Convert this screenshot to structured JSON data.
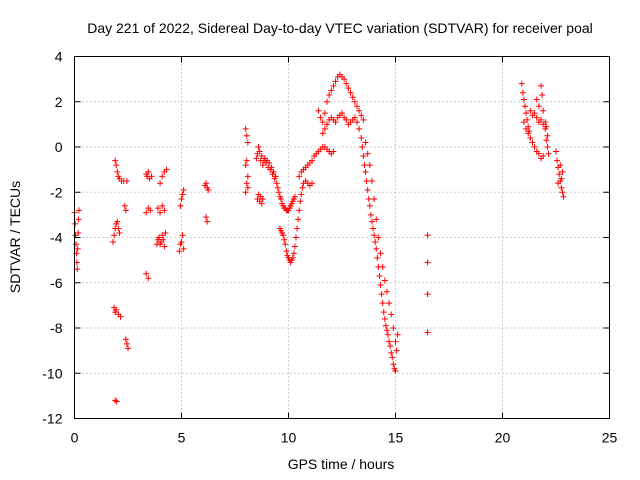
{
  "chart_data": {
    "type": "scatter",
    "title": "Day 221 of 2022, Sidereal Day-to-day VTEC variation (SDTVAR) for receiver poal",
    "xlabel": "GPS time / hours",
    "ylabel": "SDTVAR / TECUs",
    "xlim": [
      0,
      25
    ],
    "ylim": [
      -12,
      4
    ],
    "xticks": [
      0,
      5,
      10,
      15,
      20,
      25
    ],
    "xtick_labels": [
      "0",
      "5",
      "10",
      "15",
      "20",
      "25"
    ],
    "yticks": [
      -12,
      -10,
      -8,
      -6,
      -4,
      -2,
      0,
      2,
      4
    ],
    "ytick_labels": [
      "-12",
      "-10",
      "-8",
      "-6",
      "-4",
      "-2",
      "0",
      "2",
      "4"
    ],
    "grid": true,
    "marker": "+",
    "marker_color": "#ff0000",
    "series": [
      {
        "name": "SDTVAR",
        "points": [
          [
            0.0,
            -2.9
          ],
          [
            0.03,
            -3.4
          ],
          [
            0.05,
            -3.9
          ],
          [
            0.07,
            -4.3
          ],
          [
            0.09,
            -4.7
          ],
          [
            0.11,
            -5.1
          ],
          [
            0.13,
            -5.4
          ],
          [
            0.15,
            -4.5
          ],
          [
            0.17,
            -3.8
          ],
          [
            0.19,
            -3.2
          ],
          [
            0.21,
            -2.8
          ],
          [
            1.8,
            -4.2
          ],
          [
            1.85,
            -3.9
          ],
          [
            1.9,
            -3.6
          ],
          [
            1.95,
            -3.4
          ],
          [
            2.0,
            -3.3
          ],
          [
            2.05,
            -3.6
          ],
          [
            2.1,
            -3.8
          ],
          [
            1.85,
            -7.1
          ],
          [
            1.9,
            -7.3
          ],
          [
            1.95,
            -7.2
          ],
          [
            2.05,
            -7.4
          ],
          [
            2.15,
            -7.5
          ],
          [
            1.9,
            -11.2
          ],
          [
            1.97,
            -11.25
          ],
          [
            2.4,
            -8.5
          ],
          [
            2.45,
            -8.7
          ],
          [
            2.5,
            -8.9
          ],
          [
            1.9,
            -0.6
          ],
          [
            1.95,
            -0.8
          ],
          [
            2.0,
            -1.1
          ],
          [
            2.05,
            -1.3
          ],
          [
            2.1,
            -1.4
          ],
          [
            2.2,
            -1.5
          ],
          [
            2.3,
            -1.5
          ],
          [
            2.45,
            -1.5
          ],
          [
            2.35,
            -2.6
          ],
          [
            2.4,
            -2.8
          ],
          [
            3.35,
            -1.2
          ],
          [
            3.4,
            -1.3
          ],
          [
            3.45,
            -1.1
          ],
          [
            3.5,
            -1.4
          ],
          [
            3.6,
            -1.3
          ],
          [
            3.35,
            -2.9
          ],
          [
            3.45,
            -2.7
          ],
          [
            3.55,
            -2.8
          ],
          [
            3.35,
            -5.6
          ],
          [
            3.45,
            -5.8
          ],
          [
            3.85,
            -4.3
          ],
          [
            3.9,
            -4.1
          ],
          [
            3.95,
            -4.0
          ],
          [
            4.0,
            -4.3
          ],
          [
            4.05,
            -4.2
          ],
          [
            4.1,
            -3.9
          ],
          [
            4.15,
            -4.1
          ],
          [
            4.2,
            -4.4
          ],
          [
            4.25,
            -3.8
          ],
          [
            3.9,
            -2.7
          ],
          [
            4.0,
            -2.9
          ],
          [
            4.1,
            -2.6
          ],
          [
            4.2,
            -2.8
          ],
          [
            4.0,
            -1.6
          ],
          [
            4.1,
            -1.3
          ],
          [
            4.2,
            -1.1
          ],
          [
            4.3,
            -1.0
          ],
          [
            4.9,
            -4.6
          ],
          [
            4.95,
            -4.3
          ],
          [
            5.0,
            -4.2
          ],
          [
            5.05,
            -3.9
          ],
          [
            5.1,
            -4.5
          ],
          [
            4.95,
            -2.6
          ],
          [
            5.0,
            -2.3
          ],
          [
            5.05,
            -2.1
          ],
          [
            5.1,
            -1.9
          ],
          [
            6.1,
            -1.7
          ],
          [
            6.15,
            -1.6
          ],
          [
            6.2,
            -1.8
          ],
          [
            6.25,
            -1.9
          ],
          [
            6.15,
            -3.1
          ],
          [
            6.2,
            -3.3
          ],
          [
            8.0,
            0.8
          ],
          [
            8.05,
            0.5
          ],
          [
            8.1,
            0.2
          ],
          [
            8.05,
            -0.6
          ],
          [
            8.0,
            -0.8
          ],
          [
            8.1,
            -1.3
          ],
          [
            8.05,
            -1.6
          ],
          [
            8.0,
            -2.0
          ],
          [
            8.1,
            -1.8
          ],
          [
            8.5,
            -0.5
          ],
          [
            8.55,
            -0.3
          ],
          [
            8.6,
            0.0
          ],
          [
            8.65,
            -0.2
          ],
          [
            8.7,
            -0.6
          ],
          [
            8.75,
            -0.4
          ],
          [
            8.8,
            -0.8
          ],
          [
            8.85,
            -0.6
          ],
          [
            8.9,
            -0.5
          ],
          [
            8.95,
            -0.7
          ],
          [
            9.0,
            -0.6
          ],
          [
            9.05,
            -0.9
          ],
          [
            9.1,
            -0.7
          ],
          [
            9.15,
            -1.0
          ],
          [
            9.2,
            -0.9
          ],
          [
            9.25,
            -1.2
          ],
          [
            9.3,
            -1.1
          ],
          [
            9.35,
            -1.4
          ],
          [
            9.4,
            -1.3
          ],
          [
            8.55,
            -2.3
          ],
          [
            8.6,
            -2.1
          ],
          [
            8.65,
            -2.4
          ],
          [
            8.7,
            -2.2
          ],
          [
            8.75,
            -2.5
          ],
          [
            8.8,
            -2.3
          ],
          [
            9.45,
            -1.6
          ],
          [
            9.5,
            -1.8
          ],
          [
            9.55,
            -2.0
          ],
          [
            9.6,
            -2.2
          ],
          [
            9.65,
            -2.3
          ],
          [
            9.7,
            -2.5
          ],
          [
            9.75,
            -2.6
          ],
          [
            9.8,
            -2.7
          ],
          [
            9.85,
            -2.7
          ],
          [
            9.9,
            -2.8
          ],
          [
            9.95,
            -2.8
          ],
          [
            10.0,
            -2.8
          ],
          [
            10.05,
            -2.7
          ],
          [
            10.1,
            -2.6
          ],
          [
            10.15,
            -2.5
          ],
          [
            10.2,
            -2.4
          ],
          [
            10.25,
            -2.3
          ],
          [
            10.3,
            -2.2
          ],
          [
            9.6,
            -3.6
          ],
          [
            9.65,
            -3.7
          ],
          [
            9.7,
            -3.8
          ],
          [
            9.75,
            -3.9
          ],
          [
            9.8,
            -4.1
          ],
          [
            9.85,
            -4.3
          ],
          [
            9.9,
            -4.6
          ],
          [
            9.95,
            -4.8
          ],
          [
            10.0,
            -4.9
          ],
          [
            10.05,
            -5.0
          ],
          [
            10.1,
            -5.1
          ],
          [
            10.15,
            -5.0
          ],
          [
            10.2,
            -4.9
          ],
          [
            10.25,
            -4.7
          ],
          [
            10.3,
            -4.4
          ],
          [
            10.35,
            -4.0
          ],
          [
            10.4,
            -3.6
          ],
          [
            10.45,
            -3.2
          ],
          [
            10.5,
            -2.8
          ],
          [
            10.55,
            -2.4
          ],
          [
            10.6,
            -2.1
          ],
          [
            10.65,
            -1.8
          ],
          [
            10.7,
            -1.6
          ],
          [
            10.8,
            -1.5
          ],
          [
            10.9,
            -1.6
          ],
          [
            11.0,
            -1.7
          ],
          [
            11.1,
            -1.6
          ],
          [
            10.5,
            -1.3
          ],
          [
            10.6,
            -1.1
          ],
          [
            10.7,
            -1.0
          ],
          [
            10.8,
            -0.9
          ],
          [
            10.9,
            -0.8
          ],
          [
            11.0,
            -0.7
          ],
          [
            11.1,
            -0.6
          ],
          [
            11.2,
            -0.4
          ],
          [
            11.3,
            -0.3
          ],
          [
            11.4,
            -0.2
          ],
          [
            11.5,
            -0.1
          ],
          [
            11.6,
            0.0
          ],
          [
            11.7,
            0.0
          ],
          [
            11.8,
            -0.1
          ],
          [
            11.9,
            -0.2
          ],
          [
            12.0,
            -0.3
          ],
          [
            12.1,
            -0.2
          ],
          [
            11.6,
            0.6
          ],
          [
            11.7,
            0.8
          ],
          [
            11.8,
            1.0
          ],
          [
            11.9,
            1.2
          ],
          [
            12.0,
            1.3
          ],
          [
            12.1,
            1.2
          ],
          [
            12.2,
            1.1
          ],
          [
            12.3,
            1.3
          ],
          [
            12.4,
            1.4
          ],
          [
            12.5,
            1.5
          ],
          [
            12.6,
            1.3
          ],
          [
            12.7,
            1.2
          ],
          [
            12.8,
            1.0
          ],
          [
            12.9,
            1.1
          ],
          [
            13.0,
            1.2
          ],
          [
            13.1,
            1.3
          ],
          [
            13.2,
            1.1
          ],
          [
            11.4,
            1.6
          ],
          [
            11.5,
            1.3
          ],
          [
            11.6,
            1.1
          ],
          [
            11.7,
            1.5
          ],
          [
            11.8,
            2.0
          ],
          [
            11.9,
            2.3
          ],
          [
            12.0,
            2.5
          ],
          [
            12.1,
            2.7
          ],
          [
            12.2,
            2.9
          ],
          [
            12.3,
            3.1
          ],
          [
            12.4,
            3.2
          ],
          [
            12.5,
            3.1
          ],
          [
            12.6,
            3.0
          ],
          [
            12.7,
            2.8
          ],
          [
            12.8,
            2.6
          ],
          [
            12.9,
            2.4
          ],
          [
            13.0,
            2.2
          ],
          [
            13.1,
            2.0
          ],
          [
            13.2,
            1.8
          ],
          [
            13.3,
            1.6
          ],
          [
            13.4,
            1.4
          ],
          [
            13.5,
            1.2
          ],
          [
            13.3,
            0.8
          ],
          [
            13.4,
            0.4
          ],
          [
            13.45,
            0.0
          ],
          [
            13.5,
            -0.4
          ],
          [
            13.55,
            -0.8
          ],
          [
            13.6,
            -1.1
          ],
          [
            13.65,
            -1.5
          ],
          [
            13.7,
            -1.9
          ],
          [
            13.75,
            -2.3
          ],
          [
            13.8,
            -2.6
          ],
          [
            13.85,
            -3.0
          ],
          [
            13.9,
            -3.3
          ],
          [
            13.95,
            -3.6
          ],
          [
            14.0,
            -3.9
          ],
          [
            14.05,
            -4.2
          ],
          [
            14.1,
            -4.5
          ],
          [
            14.15,
            -4.9
          ],
          [
            14.2,
            -5.3
          ],
          [
            14.25,
            -5.7
          ],
          [
            14.3,
            -6.1
          ],
          [
            14.35,
            -6.5
          ],
          [
            14.4,
            -6.9
          ],
          [
            14.45,
            -7.3
          ],
          [
            14.5,
            -7.6
          ],
          [
            14.55,
            -7.9
          ],
          [
            14.6,
            -8.1
          ],
          [
            14.65,
            -8.3
          ],
          [
            14.7,
            -8.6
          ],
          [
            14.75,
            -8.8
          ],
          [
            14.8,
            -9.1
          ],
          [
            14.85,
            -9.3
          ],
          [
            14.9,
            -9.6
          ],
          [
            14.95,
            -9.8
          ],
          [
            15.0,
            -9.9
          ],
          [
            13.6,
            0.2
          ],
          [
            13.7,
            -0.3
          ],
          [
            13.8,
            -0.8
          ],
          [
            13.9,
            -1.5
          ],
          [
            14.0,
            -2.3
          ],
          [
            14.1,
            -3.2
          ],
          [
            14.2,
            -4.0
          ],
          [
            14.3,
            -4.7
          ],
          [
            14.4,
            -5.3
          ],
          [
            14.5,
            -5.9
          ],
          [
            14.6,
            -6.4
          ],
          [
            14.7,
            -6.9
          ],
          [
            14.8,
            -7.4
          ],
          [
            14.9,
            -8.0
          ],
          [
            15.0,
            -8.6
          ],
          [
            15.05,
            -9.0
          ],
          [
            15.1,
            -8.3
          ],
          [
            16.5,
            -3.9
          ],
          [
            16.5,
            -5.1
          ],
          [
            16.5,
            -6.5
          ],
          [
            16.5,
            -8.2
          ],
          [
            20.9,
            2.8
          ],
          [
            20.95,
            2.4
          ],
          [
            21.0,
            2.1
          ],
          [
            21.05,
            1.8
          ],
          [
            21.1,
            1.5
          ],
          [
            21.15,
            1.2
          ],
          [
            21.2,
            0.9
          ],
          [
            21.25,
            0.7
          ],
          [
            21.0,
            1.1
          ],
          [
            21.1,
            0.8
          ],
          [
            21.2,
            0.6
          ],
          [
            21.3,
            0.4
          ],
          [
            21.4,
            0.2
          ],
          [
            21.5,
            0.0
          ],
          [
            21.6,
            -0.2
          ],
          [
            21.7,
            -0.3
          ],
          [
            21.8,
            -0.5
          ],
          [
            21.9,
            -0.4
          ],
          [
            21.3,
            1.6
          ],
          [
            21.4,
            1.4
          ],
          [
            21.5,
            1.5
          ],
          [
            21.6,
            1.3
          ],
          [
            21.7,
            1.1
          ],
          [
            21.8,
            1.2
          ],
          [
            21.9,
            1.0
          ],
          [
            22.0,
            0.8
          ],
          [
            22.1,
            0.5
          ],
          [
            21.6,
            2.1
          ],
          [
            21.7,
            1.8
          ],
          [
            21.8,
            2.7
          ],
          [
            21.85,
            2.3
          ],
          [
            21.9,
            1.6
          ],
          [
            22.0,
            1.1
          ],
          [
            22.05,
            0.9
          ],
          [
            22.05,
            0.3
          ],
          [
            22.1,
            0.0
          ],
          [
            22.15,
            -0.3
          ],
          [
            22.5,
            -0.2
          ],
          [
            22.55,
            -0.6
          ],
          [
            22.6,
            -0.9
          ],
          [
            22.65,
            -1.2
          ],
          [
            22.7,
            -1.5
          ],
          [
            22.75,
            -1.8
          ],
          [
            22.8,
            -2.0
          ],
          [
            22.85,
            -2.2
          ],
          [
            22.7,
            -0.8
          ],
          [
            22.8,
            -1.1
          ],
          [
            22.6,
            -1.6
          ],
          [
            22.75,
            -1.4
          ]
        ]
      }
    ]
  }
}
